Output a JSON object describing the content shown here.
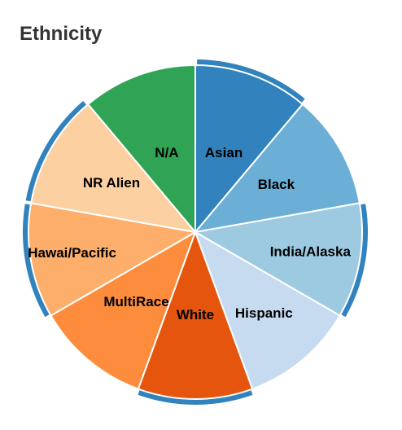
{
  "chart_data": {
    "type": "pie",
    "title": "Ethnicity",
    "start": "12 o'clock, clockwise",
    "slices": [
      {
        "label": "Asian",
        "value": 1,
        "color": "#3182bd",
        "selected": true
      },
      {
        "label": "Black",
        "value": 1,
        "color": "#6baed6",
        "selected": false
      },
      {
        "label": "India/Alaska",
        "value": 1,
        "color": "#9ecae1",
        "selected": true
      },
      {
        "label": "Hispanic",
        "value": 1,
        "color": "#c6dbef",
        "selected": false
      },
      {
        "label": "White",
        "value": 1,
        "color": "#e6550d",
        "selected": true
      },
      {
        "label": "MultiRace",
        "value": 1,
        "color": "#fd8d3c",
        "selected": false
      },
      {
        "label": "Hawai/Pacific",
        "value": 1,
        "color": "#fdae6b",
        "selected": true
      },
      {
        "label": "NR Alien",
        "value": 1,
        "color": "#fdd0a2",
        "selected": true
      },
      {
        "label": "N/A",
        "value": 1,
        "color": "#31a354",
        "selected": false
      }
    ],
    "selection_color": "#3182bd"
  }
}
